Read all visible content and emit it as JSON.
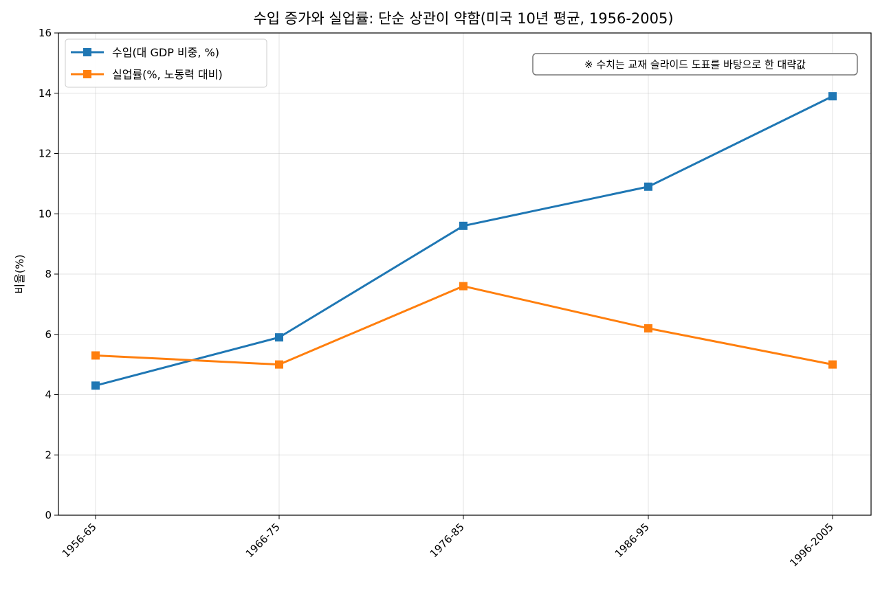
{
  "chart_data": {
    "type": "line",
    "title": "수입 증가와 실업률: 단순 상관이 약함(미국 10년 평균, 1956-2005)",
    "xlabel": "",
    "ylabel": "비율(%)",
    "categories": [
      "1956-65",
      "1966-75",
      "1976-85",
      "1986-95",
      "1996-2005"
    ],
    "ylim": [
      0,
      16
    ],
    "yticks": [
      "0",
      "2",
      "4",
      "6",
      "8",
      "10",
      "12",
      "14",
      "16"
    ],
    "grid": true,
    "legend_position": "top-left",
    "series": [
      {
        "name": "수입(대 GDP 비중, %)",
        "color": "#1f77b4",
        "marker": "square",
        "values": [
          4.3,
          5.9,
          9.6,
          10.9,
          13.9
        ]
      },
      {
        "name": "실업률(%, 노동력 대비)",
        "color": "#ff7f0e",
        "marker": "square",
        "values": [
          5.3,
          5.0,
          7.6,
          6.2,
          5.0
        ]
      }
    ],
    "annotation": "※ 수치는 교재 슬라이드 도표를 바탕으로 한 대략값"
  }
}
